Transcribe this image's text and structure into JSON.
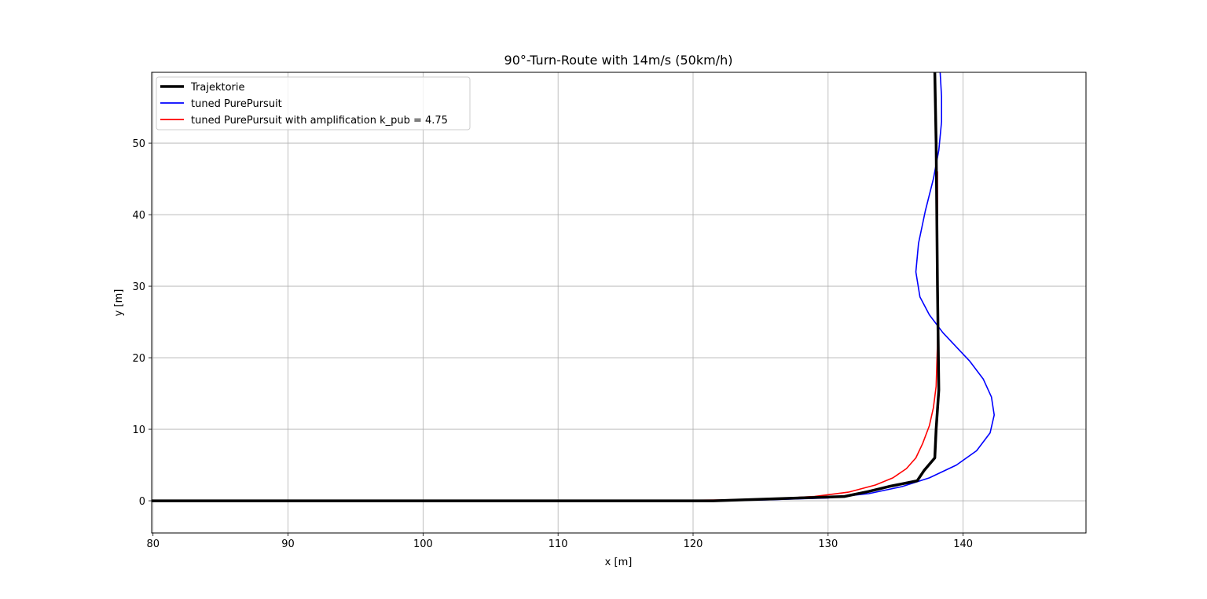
{
  "chart_data": {
    "type": "line",
    "title": "90°-Turn-Route with 14m/s (50km/h)",
    "xlabel": "x [m]",
    "ylabel": "y [m]",
    "xlim": [
      79.9,
      149.1
    ],
    "ylim": [
      -4.5,
      59.9
    ],
    "xticks": [
      80,
      90,
      100,
      110,
      120,
      130,
      140
    ],
    "yticks": [
      0,
      10,
      20,
      30,
      40,
      50
    ],
    "grid": true,
    "legend_position": "top-left",
    "series": [
      {
        "name": "Trajektorie",
        "color": "#000000",
        "x": [
          79.9,
          121.5,
          131.2,
          133.0,
          134.5,
          136.6,
          137.1,
          137.9,
          138.0,
          138.2,
          138.1,
          138.0,
          137.9
        ],
        "y": [
          0.0,
          0.0,
          0.6,
          1.3,
          2.0,
          2.8,
          4.2,
          6.0,
          10.0,
          15.5,
          30.0,
          50.0,
          59.9
        ]
      },
      {
        "name": "tuned PurePursuit",
        "color": "#0000ff",
        "x": [
          79.9,
          120.0,
          125.0,
          130.0,
          133.0,
          135.5,
          137.5,
          139.5,
          141.0,
          142.0,
          142.3,
          142.1,
          141.5,
          140.5,
          139.5,
          138.5,
          137.5,
          136.8,
          136.5,
          136.7,
          137.2,
          137.8,
          138.2,
          138.4,
          138.4,
          138.3
        ],
        "y": [
          0.0,
          0.0,
          0.1,
          0.4,
          1.0,
          2.0,
          3.2,
          5.0,
          7.0,
          9.5,
          12.0,
          14.5,
          17.0,
          19.5,
          21.5,
          23.5,
          26.0,
          28.5,
          32.0,
          36.0,
          40.5,
          45.0,
          49.0,
          53.0,
          56.5,
          59.9
        ]
      },
      {
        "name": "tuned PurePursuit with amplification k_pub = 4.75",
        "color": "#ff0000",
        "x": [
          79.9,
          115.0,
          122.0,
          126.0,
          129.0,
          131.5,
          133.5,
          134.8,
          135.8,
          136.5,
          137.0,
          137.5,
          137.8,
          138.0,
          138.1,
          138.1,
          138.1
        ],
        "y": [
          0.0,
          0.0,
          0.1,
          0.3,
          0.6,
          1.2,
          2.2,
          3.2,
          4.5,
          6.0,
          8.0,
          10.5,
          13.0,
          16.0,
          22.0,
          35.0,
          46.0
        ]
      }
    ]
  }
}
